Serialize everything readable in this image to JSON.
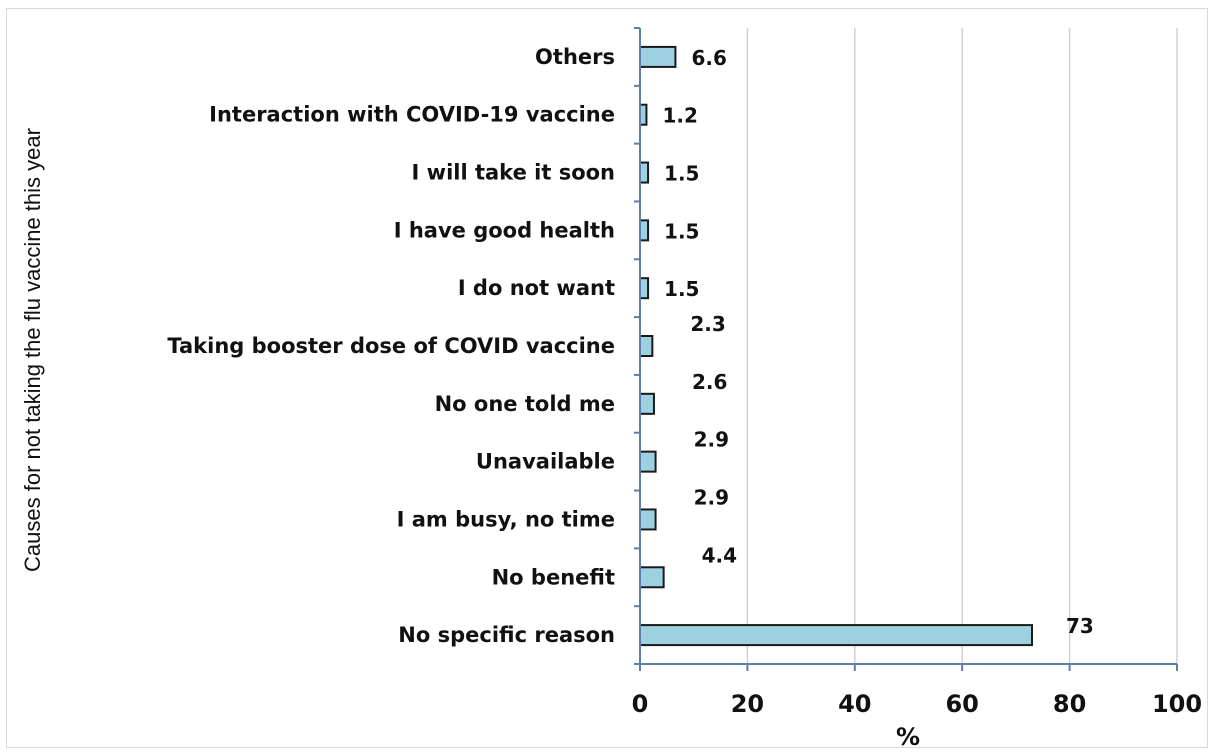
{
  "chart_data": {
    "type": "bar",
    "orientation": "horizontal",
    "categories": [
      "No specific reason",
      "No benefit",
      "I am busy, no time",
      "Unavailable",
      "No one told me",
      "Taking booster dose of COVID vaccine",
      "I do not want",
      "I have good health",
      "I will take it soon",
      "Interaction with COVID-19 vaccine",
      "Others"
    ],
    "values": [
      73,
      4.4,
      2.9,
      2.9,
      2.6,
      2.3,
      1.5,
      1.5,
      1.5,
      1.2,
      6.6
    ],
    "value_labels": [
      "73",
      "4.4",
      "2.9",
      "2.9",
      "2.6",
      "2.3",
      "1.5",
      "1.5",
      "1.5",
      "1.2",
      "6.6"
    ],
    "xlabel": "%",
    "ylabel": "Causes for not taking the flu vaccine this year",
    "xlim": [
      0,
      100
    ],
    "xticks": [
      "0",
      "20",
      "40",
      "60",
      "80",
      "100"
    ],
    "grid": "vertical",
    "colors": {
      "bar_fill": "#9dd1e0",
      "bar_stroke": "#1a1a1a",
      "grid": "#d0d0d0",
      "axis": "#5b7fa8"
    }
  }
}
